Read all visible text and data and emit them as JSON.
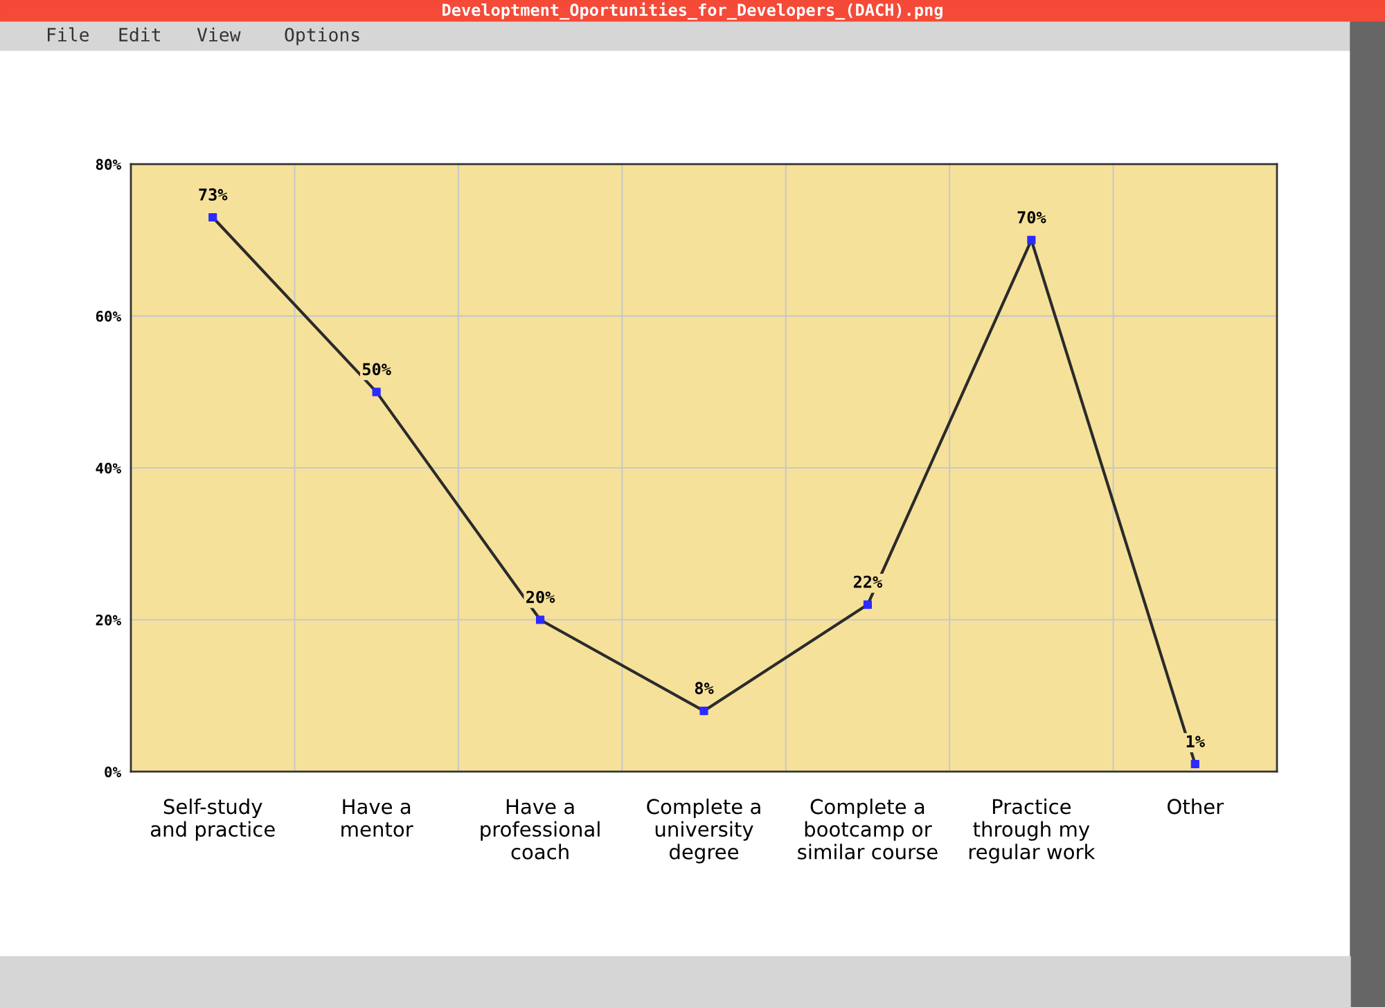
{
  "chart_data": {
    "type": "line",
    "title": "Developtment_Oportunities_for_Developers_(DACH).png",
    "annotations": [
      "File",
      "Edit",
      "View",
      "Options"
    ],
    "categories": [
      "Self-study\nand practice",
      "Have a\nmentor",
      "Have a\nprofessional\ncoach",
      "Complete a\nuniversity\ndegree",
      "Complete a\nbootcamp or\nsimilar course",
      "Practice\nthrough my\nregular work",
      "Other"
    ],
    "series": [
      {
        "color": "#2b2b2b",
        "values": [
          73,
          50,
          20,
          8,
          22,
          70,
          1
        ],
        "colors": [
          "#2b2bff",
          "#2b2bff",
          "#2b2bff",
          "#2b2bff",
          "#2b2bff",
          "#2b2bff",
          "#2b2bff"
        ],
        "value_labels": [
          "73%",
          "50%",
          "20%",
          "8%",
          "22%",
          "70%",
          "1%"
        ]
      }
    ],
    "ylim": [
      0,
      80
    ],
    "yticks": [
      {
        "value": 0,
        "label": "0%"
      },
      {
        "value": 20,
        "label": "20%"
      },
      {
        "value": 40,
        "label": "40%"
      },
      {
        "value": 60,
        "label": "60%"
      },
      {
        "value": 80,
        "label": "80%"
      }
    ],
    "grid": true,
    "marker": "square",
    "line_style": "solid"
  }
}
